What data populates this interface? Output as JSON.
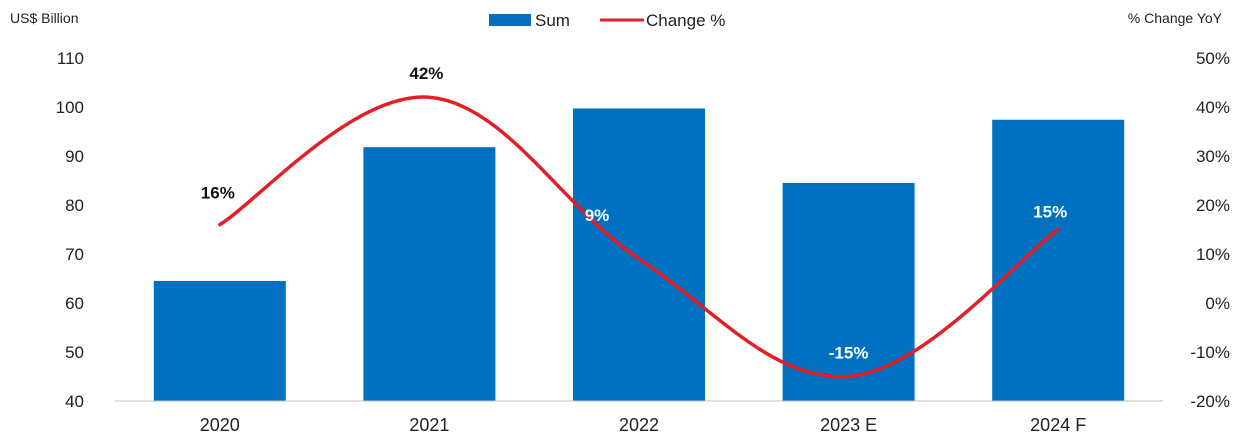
{
  "chart_data": {
    "type": "bar",
    "title": "",
    "ylabel_left": "US$ Billion",
    "ylabel_right": "% Change YoY",
    "categories": [
      "2020",
      "2021",
      "2022",
      "2023 E",
      "2024 F"
    ],
    "series": [
      {
        "name": "Sum",
        "type": "bar",
        "axis": "left",
        "color": "#0070C0",
        "values": [
          64.5,
          91.8,
          99.7,
          84.5,
          97.4
        ]
      },
      {
        "name": "Change %",
        "type": "line",
        "axis": "right",
        "color": "#E41E26",
        "values": [
          16,
          42,
          9,
          -15,
          15
        ]
      }
    ],
    "ylim_left": [
      40,
      110
    ],
    "yticks_left": [
      40,
      50,
      60,
      70,
      80,
      90,
      100,
      110
    ],
    "ylim_right": [
      -20,
      50
    ],
    "yticks_right": [
      "-20%",
      "-10%",
      "0%",
      "10%",
      "20%",
      "30%",
      "40%",
      "50%"
    ],
    "data_labels": [
      {
        "text": "16%",
        "color": "#111111"
      },
      {
        "text": "42%",
        "color": "#111111"
      },
      {
        "text": "9%",
        "color": "#ffffff"
      },
      {
        "text": "-15%",
        "color": "#ffffff"
      },
      {
        "text": "15%",
        "color": "#ffffff"
      }
    ],
    "legend": {
      "position": "top-center",
      "entries": [
        "Sum",
        "Change %"
      ]
    },
    "grid": false
  }
}
